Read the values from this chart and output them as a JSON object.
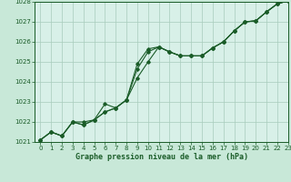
{
  "xlabel": "Graphe pression niveau de la mer (hPa)",
  "background_color": "#c8e8d8",
  "plot_bg_color": "#d8f0e8",
  "line_color": "#1a5c28",
  "grid_color": "#a8ccbc",
  "ylim": [
    1021.0,
    1028.0
  ],
  "xlim": [
    -0.5,
    23
  ],
  "yticks": [
    1021,
    1022,
    1023,
    1024,
    1025,
    1026,
    1027,
    1028
  ],
  "xticks": [
    0,
    1,
    2,
    3,
    4,
    5,
    6,
    7,
    8,
    9,
    10,
    11,
    12,
    13,
    14,
    15,
    16,
    17,
    18,
    19,
    20,
    21,
    22,
    23
  ],
  "series1_x": [
    0,
    1,
    2,
    3,
    4,
    5,
    6,
    7,
    8,
    9,
    10,
    11,
    12,
    13,
    14,
    15,
    16,
    17,
    18,
    19,
    20,
    21,
    22,
    23
  ],
  "series1_y": [
    1021.1,
    1021.5,
    1021.3,
    1022.0,
    1022.0,
    1022.1,
    1022.9,
    1022.7,
    1023.1,
    1024.9,
    1025.65,
    1025.75,
    1025.5,
    1025.3,
    1025.3,
    1025.3,
    1025.7,
    1026.0,
    1026.55,
    1027.0,
    1027.05,
    1027.5,
    1027.9,
    1028.05
  ],
  "series2_x": [
    0,
    1,
    2,
    3,
    4,
    5,
    6,
    7,
    8,
    9,
    10,
    11,
    12,
    13,
    14,
    15,
    16,
    17,
    18,
    19,
    20,
    21,
    22,
    23
  ],
  "series2_y": [
    1021.1,
    1021.5,
    1021.3,
    1022.0,
    1021.85,
    1022.1,
    1022.5,
    1022.7,
    1023.1,
    1024.65,
    1025.5,
    1025.75,
    1025.5,
    1025.3,
    1025.3,
    1025.3,
    1025.7,
    1026.0,
    1026.55,
    1027.0,
    1027.05,
    1027.5,
    1027.9,
    1028.05
  ],
  "series3_x": [
    0,
    1,
    2,
    3,
    4,
    5,
    6,
    7,
    8,
    9,
    10,
    11,
    12,
    13,
    14,
    15,
    16,
    17,
    18,
    19,
    20,
    21,
    22,
    23
  ],
  "series3_y": [
    1021.1,
    1021.5,
    1021.3,
    1022.0,
    1021.85,
    1022.1,
    1022.5,
    1022.7,
    1023.1,
    1024.2,
    1025.0,
    1025.75,
    1025.5,
    1025.3,
    1025.3,
    1025.3,
    1025.7,
    1026.0,
    1026.55,
    1027.0,
    1027.05,
    1027.5,
    1027.9,
    1028.05
  ],
  "marker": "D",
  "marker_size": 1.8,
  "line_width": 0.8,
  "tick_label_fontsize": 5.0,
  "xlabel_fontsize": 6.0,
  "tick_color": "#1a5c28",
  "label_color": "#1a5c28"
}
